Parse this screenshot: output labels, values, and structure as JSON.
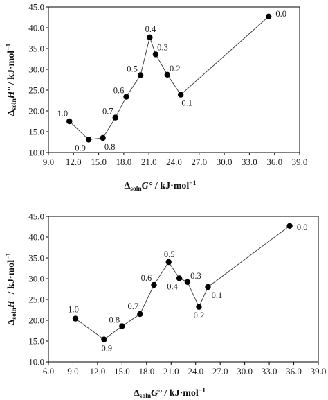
{
  "chart_data": [
    {
      "type": "scatter",
      "title": "",
      "xlabel": {
        "prefix": "Δ",
        "sub": "soln",
        "main": "G°",
        "unit": " / kJ·mol",
        "sup": "−1"
      },
      "ylabel": {
        "prefix": "Δ",
        "sub": "soln",
        "main": "H°",
        "unit": " / kJ·mol",
        "sup": "−1"
      },
      "xlim": [
        9.0,
        39.0
      ],
      "ylim": [
        10.0,
        45.0
      ],
      "x_ticks": [
        "9.0",
        "12.0",
        "15.0",
        "18.0",
        "21.0",
        "24.0",
        "27.0",
        "30.0",
        "33.0",
        "36.0",
        "39.0"
      ],
      "y_ticks": [
        "10.0",
        "15.0",
        "20.0",
        "25.0",
        "30.0",
        "35.0",
        "40.0",
        "45.0"
      ],
      "grid": false,
      "markers": true,
      "points": [
        {
          "label": "1.0",
          "x": 11.5,
          "y": 17.5
        },
        {
          "label": "0.9",
          "x": 13.8,
          "y": 13.1
        },
        {
          "label": "0.8",
          "x": 15.5,
          "y": 13.5
        },
        {
          "label": "0.7",
          "x": 17.0,
          "y": 18.4
        },
        {
          "label": "0.6",
          "x": 18.3,
          "y": 23.4
        },
        {
          "label": "0.5",
          "x": 20.0,
          "y": 28.6
        },
        {
          "label": "0.4",
          "x": 21.1,
          "y": 37.7
        },
        {
          "label": "0.3",
          "x": 21.8,
          "y": 33.6
        },
        {
          "label": "0.2",
          "x": 23.2,
          "y": 28.7
        },
        {
          "label": "0.1",
          "x": 24.8,
          "y": 23.9
        },
        {
          "label": "0.0",
          "x": 35.3,
          "y": 42.7
        }
      ]
    },
    {
      "type": "scatter",
      "title": "",
      "xlabel": {
        "prefix": "Δ",
        "sub": "soln",
        "main": "G°",
        "unit": " / kJ·mol",
        "sup": "−1"
      },
      "ylabel": {
        "prefix": "Δ",
        "sub": "soln",
        "main": "H°",
        "unit": " / kJ·mol",
        "sup": "−1"
      },
      "xlim": [
        6.0,
        39.0
      ],
      "ylim": [
        10.0,
        45.0
      ],
      "x_ticks": [
        "6.0",
        "9.0",
        "12.0",
        "15.0",
        "18.0",
        "21.0",
        "24.0",
        "27.0",
        "30.0",
        "33.0",
        "36.0",
        "39.0"
      ],
      "y_ticks": [
        "10.0",
        "15.0",
        "20.0",
        "25.0",
        "30.0",
        "35.0",
        "40.0",
        "45.0"
      ],
      "grid": false,
      "markers": true,
      "points": [
        {
          "label": "1.0",
          "x": 9.3,
          "y": 20.4
        },
        {
          "label": "0.9",
          "x": 12.8,
          "y": 15.4
        },
        {
          "label": "0.8",
          "x": 15.0,
          "y": 18.6
        },
        {
          "label": "0.7",
          "x": 17.2,
          "y": 21.5
        },
        {
          "label": "0.6",
          "x": 18.9,
          "y": 28.5
        },
        {
          "label": "0.5",
          "x": 20.7,
          "y": 34.0
        },
        {
          "label": "0.4",
          "x": 22.0,
          "y": 30.1
        },
        {
          "label": "0.3",
          "x": 23.0,
          "y": 29.2
        },
        {
          "label": "0.2",
          "x": 24.4,
          "y": 23.2
        },
        {
          "label": "0.1",
          "x": 25.5,
          "y": 28.0
        },
        {
          "label": "0.0",
          "x": 35.5,
          "y": 42.7
        }
      ]
    }
  ]
}
